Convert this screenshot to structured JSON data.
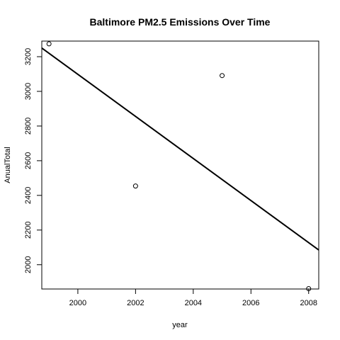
{
  "chart_data": {
    "type": "scatter",
    "title": "Baltimore PM2.5 Emissions Over Time",
    "xlabel": "year",
    "ylabel": "AnualTotal",
    "xlim": [
      1998.75,
      2008.35
    ],
    "ylim": [
      1860,
      3290
    ],
    "x_ticks": [
      2000,
      2002,
      2004,
      2006,
      2008
    ],
    "y_ticks": [
      2000,
      2200,
      2400,
      2600,
      2800,
      3000,
      3200
    ],
    "points": [
      {
        "x": 1999,
        "y": 3274
      },
      {
        "x": 2002,
        "y": 2454
      },
      {
        "x": 2005,
        "y": 3091
      },
      {
        "x": 2008,
        "y": 1862
      }
    ],
    "trend_line": {
      "x": [
        1998.75,
        2008.35
      ],
      "y": [
        3250,
        2085
      ]
    },
    "grid": false,
    "legend": "none"
  }
}
